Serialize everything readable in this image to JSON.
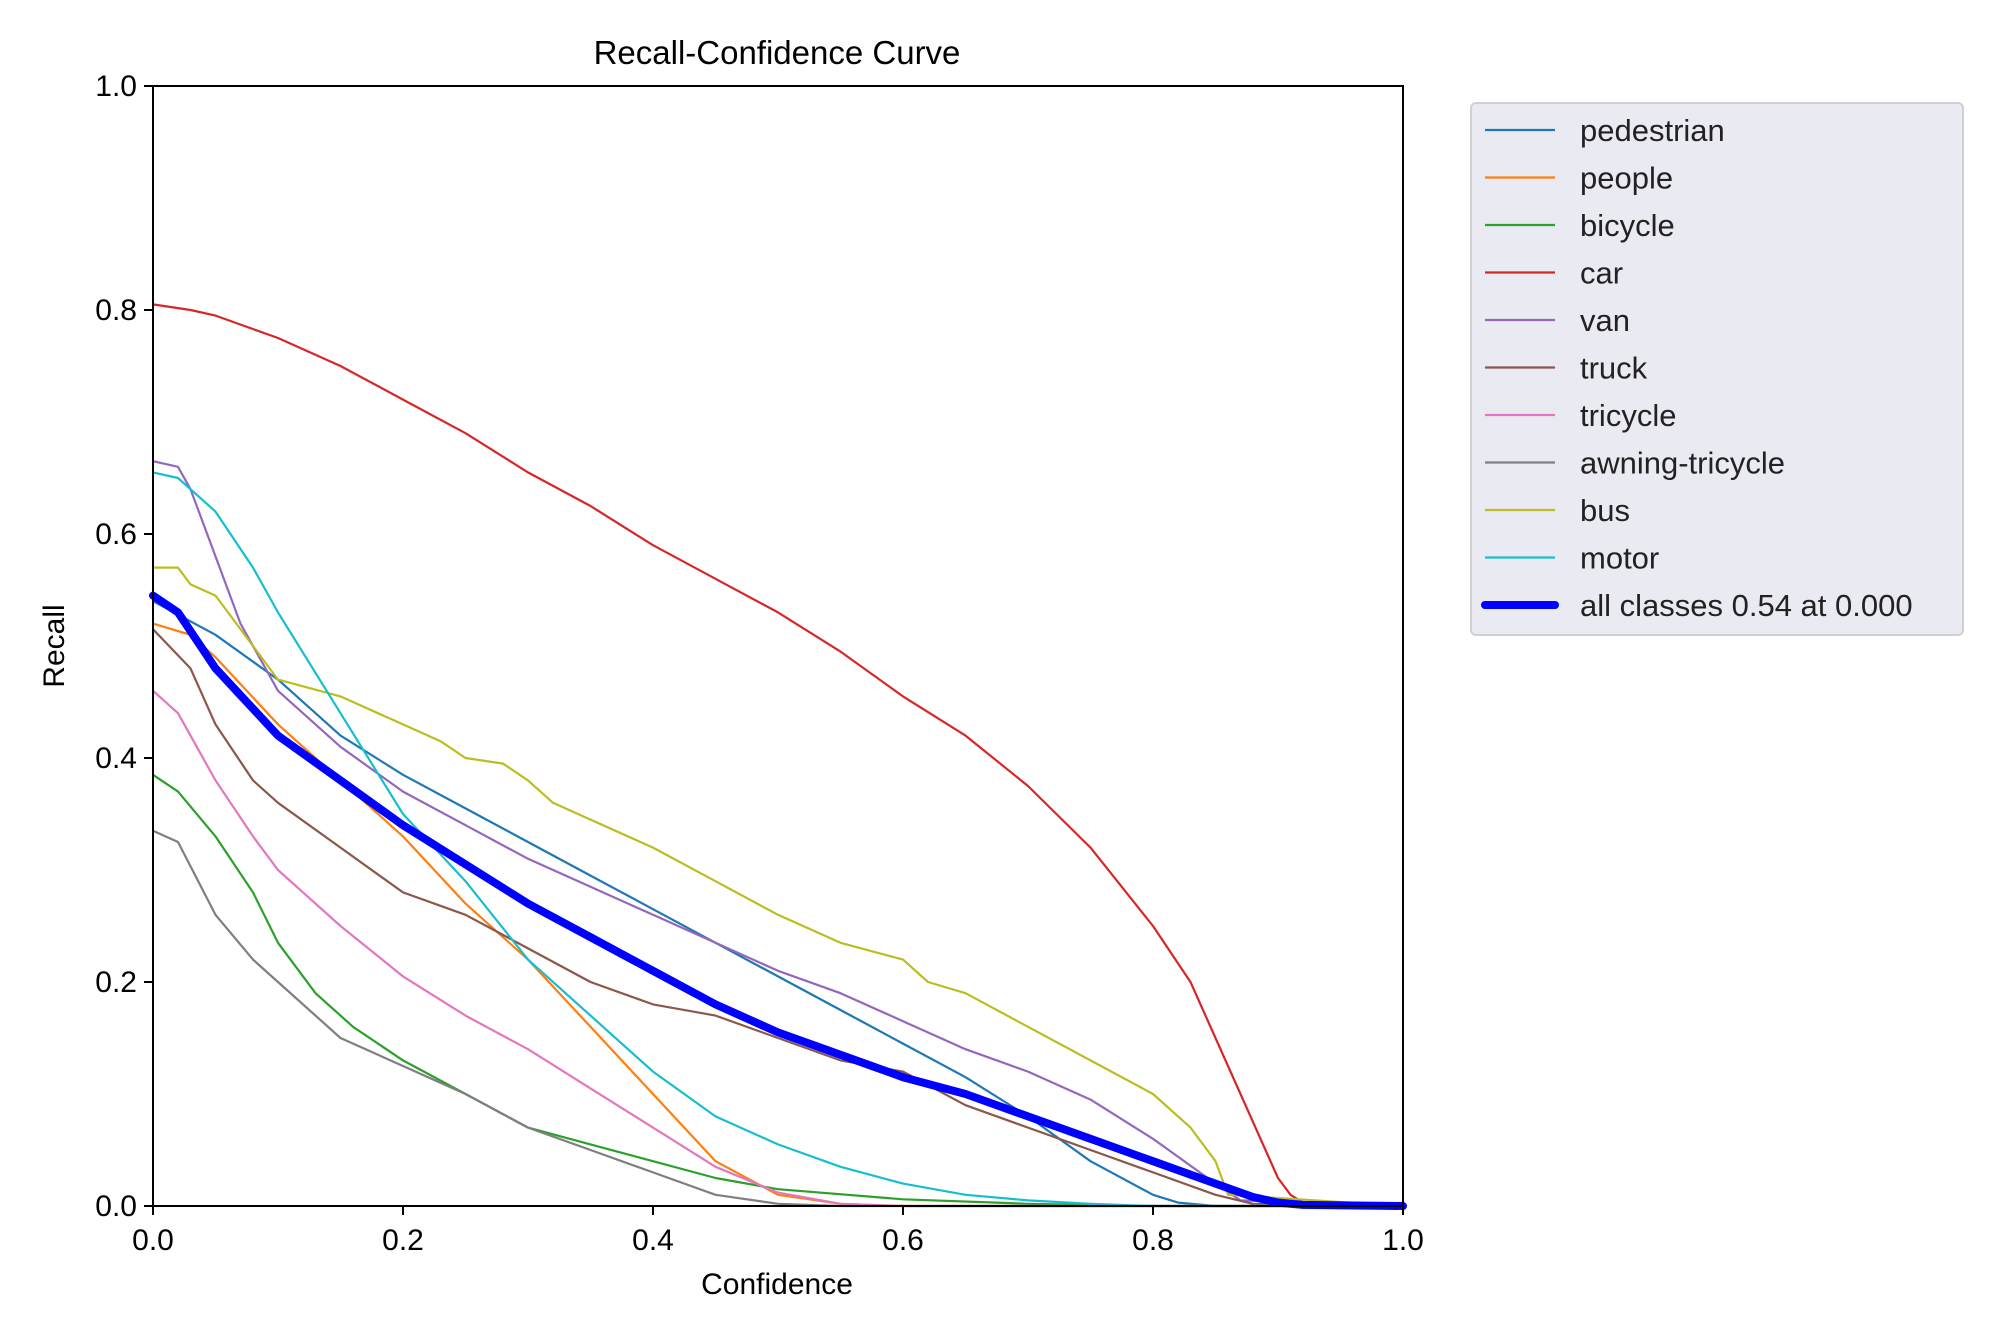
{
  "chart_data": {
    "type": "line",
    "title": "Recall-Confidence Curve",
    "xlabel": "Confidence",
    "ylabel": "Recall",
    "xlim": [
      0,
      1
    ],
    "ylim": [
      0,
      1
    ],
    "xticks": [
      "0.0",
      "0.2",
      "0.4",
      "0.6",
      "0.8",
      "1.0"
    ],
    "yticks": [
      "0.0",
      "0.2",
      "0.4",
      "0.6",
      "0.8",
      "1.0"
    ],
    "grid": false,
    "legend_position": "outside-top-right",
    "series": [
      {
        "name": "pedestrian",
        "color": "#1f77b4",
        "x": [
          0,
          0.05,
          0.1,
          0.15,
          0.2,
          0.25,
          0.3,
          0.35,
          0.4,
          0.45,
          0.5,
          0.55,
          0.6,
          0.65,
          0.7,
          0.75,
          0.8,
          0.82,
          0.85,
          1.0
        ],
        "y": [
          0.54,
          0.51,
          0.47,
          0.42,
          0.385,
          0.355,
          0.325,
          0.295,
          0.265,
          0.235,
          0.205,
          0.175,
          0.145,
          0.115,
          0.08,
          0.04,
          0.01,
          0.003,
          0,
          0
        ]
      },
      {
        "name": "people",
        "color": "#ff7f0e",
        "x": [
          0,
          0.03,
          0.05,
          0.1,
          0.15,
          0.2,
          0.25,
          0.3,
          0.35,
          0.4,
          0.45,
          0.5,
          0.55,
          0.6,
          1.0
        ],
        "y": [
          0.52,
          0.51,
          0.49,
          0.43,
          0.38,
          0.33,
          0.27,
          0.22,
          0.16,
          0.1,
          0.04,
          0.01,
          0.002,
          0,
          0
        ]
      },
      {
        "name": "bicycle",
        "color": "#2ca02c",
        "x": [
          0,
          0.02,
          0.05,
          0.08,
          0.1,
          0.13,
          0.16,
          0.2,
          0.25,
          0.3,
          0.35,
          0.4,
          0.45,
          0.5,
          0.6,
          0.7,
          0.8,
          1.0
        ],
        "y": [
          0.385,
          0.37,
          0.33,
          0.28,
          0.235,
          0.19,
          0.16,
          0.13,
          0.1,
          0.07,
          0.055,
          0.04,
          0.025,
          0.015,
          0.006,
          0.002,
          0,
          0
        ]
      },
      {
        "name": "car",
        "color": "#d62728",
        "x": [
          0,
          0.03,
          0.05,
          0.1,
          0.15,
          0.2,
          0.25,
          0.3,
          0.35,
          0.4,
          0.45,
          0.5,
          0.55,
          0.6,
          0.65,
          0.7,
          0.75,
          0.8,
          0.83,
          0.85,
          0.87,
          0.89,
          0.9,
          0.91,
          0.92,
          0.93,
          1.0
        ],
        "y": [
          0.805,
          0.8,
          0.795,
          0.775,
          0.75,
          0.72,
          0.69,
          0.655,
          0.625,
          0.59,
          0.56,
          0.53,
          0.495,
          0.455,
          0.42,
          0.375,
          0.32,
          0.25,
          0.2,
          0.15,
          0.1,
          0.05,
          0.025,
          0.01,
          0.003,
          0,
          0
        ]
      },
      {
        "name": "van",
        "color": "#9467bd",
        "x": [
          0,
          0.02,
          0.03,
          0.05,
          0.07,
          0.1,
          0.15,
          0.2,
          0.25,
          0.3,
          0.35,
          0.4,
          0.45,
          0.5,
          0.55,
          0.6,
          0.65,
          0.7,
          0.75,
          0.8,
          0.85,
          0.87,
          1.0
        ],
        "y": [
          0.665,
          0.66,
          0.64,
          0.58,
          0.52,
          0.46,
          0.41,
          0.37,
          0.34,
          0.31,
          0.285,
          0.26,
          0.235,
          0.21,
          0.19,
          0.165,
          0.14,
          0.12,
          0.095,
          0.06,
          0.02,
          0.005,
          0
        ]
      },
      {
        "name": "truck",
        "color": "#8c564b",
        "x": [
          0,
          0.03,
          0.05,
          0.08,
          0.1,
          0.15,
          0.2,
          0.25,
          0.3,
          0.35,
          0.4,
          0.45,
          0.5,
          0.55,
          0.6,
          0.65,
          0.7,
          0.75,
          0.8,
          0.85,
          0.88,
          1.0
        ],
        "y": [
          0.515,
          0.48,
          0.43,
          0.38,
          0.36,
          0.32,
          0.28,
          0.26,
          0.23,
          0.2,
          0.18,
          0.17,
          0.15,
          0.13,
          0.12,
          0.09,
          0.07,
          0.05,
          0.03,
          0.01,
          0.002,
          0
        ]
      },
      {
        "name": "tricycle",
        "color": "#e377c2",
        "x": [
          0,
          0.02,
          0.05,
          0.08,
          0.1,
          0.15,
          0.2,
          0.25,
          0.3,
          0.35,
          0.4,
          0.45,
          0.5,
          0.55,
          0.6,
          1.0
        ],
        "y": [
          0.46,
          0.44,
          0.38,
          0.33,
          0.3,
          0.25,
          0.205,
          0.17,
          0.14,
          0.105,
          0.07,
          0.035,
          0.012,
          0.002,
          0,
          0
        ]
      },
      {
        "name": "awning-tricycle",
        "color": "#7f7f7f",
        "x": [
          0,
          0.02,
          0.05,
          0.08,
          0.1,
          0.15,
          0.2,
          0.25,
          0.3,
          0.35,
          0.4,
          0.45,
          0.5,
          0.55,
          1.0
        ],
        "y": [
          0.335,
          0.325,
          0.26,
          0.22,
          0.2,
          0.15,
          0.125,
          0.1,
          0.07,
          0.05,
          0.03,
          0.01,
          0.002,
          0,
          0
        ]
      },
      {
        "name": "bus",
        "color": "#bcbd22",
        "x": [
          0,
          0.02,
          0.03,
          0.05,
          0.06,
          0.08,
          0.1,
          0.15,
          0.2,
          0.23,
          0.25,
          0.28,
          0.3,
          0.32,
          0.35,
          0.4,
          0.45,
          0.5,
          0.55,
          0.6,
          0.62,
          0.65,
          0.7,
          0.75,
          0.8,
          0.83,
          0.85,
          0.86,
          1.0
        ],
        "y": [
          0.57,
          0.57,
          0.555,
          0.545,
          0.53,
          0.5,
          0.47,
          0.455,
          0.43,
          0.415,
          0.4,
          0.395,
          0.38,
          0.36,
          0.345,
          0.32,
          0.29,
          0.26,
          0.235,
          0.22,
          0.2,
          0.19,
          0.16,
          0.13,
          0.1,
          0.07,
          0.04,
          0.01,
          0
        ]
      },
      {
        "name": "motor",
        "color": "#17becf",
        "x": [
          0,
          0.02,
          0.05,
          0.08,
          0.1,
          0.15,
          0.2,
          0.25,
          0.3,
          0.35,
          0.4,
          0.45,
          0.5,
          0.55,
          0.6,
          0.65,
          0.7,
          0.75,
          0.8,
          1.0
        ],
        "y": [
          0.655,
          0.65,
          0.62,
          0.57,
          0.53,
          0.44,
          0.35,
          0.29,
          0.22,
          0.17,
          0.12,
          0.08,
          0.055,
          0.035,
          0.02,
          0.01,
          0.005,
          0.002,
          0,
          0
        ]
      },
      {
        "name": "all classes 0.54 at 0.000",
        "color": "#0000ff",
        "bold": true,
        "x": [
          0,
          0.02,
          0.05,
          0.1,
          0.15,
          0.2,
          0.25,
          0.3,
          0.35,
          0.4,
          0.45,
          0.5,
          0.55,
          0.6,
          0.65,
          0.7,
          0.75,
          0.8,
          0.85,
          0.88,
          0.9,
          0.92,
          1.0
        ],
        "y": [
          0.545,
          0.53,
          0.48,
          0.42,
          0.38,
          0.34,
          0.305,
          0.27,
          0.24,
          0.21,
          0.18,
          0.155,
          0.135,
          0.115,
          0.1,
          0.08,
          0.06,
          0.04,
          0.02,
          0.008,
          0.003,
          0.001,
          0
        ]
      }
    ]
  }
}
